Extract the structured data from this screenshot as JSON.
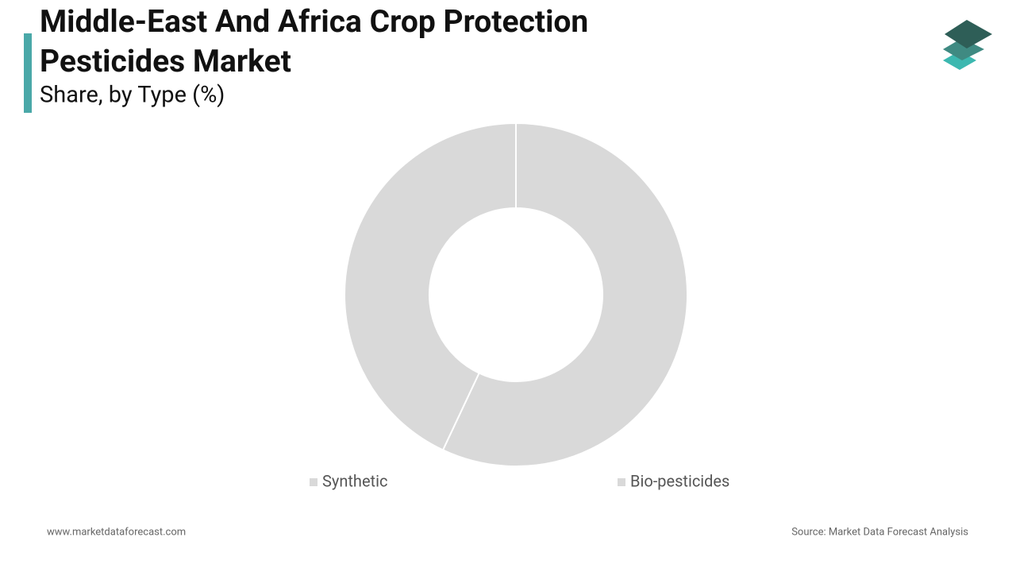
{
  "chart_data": {
    "type": "donut",
    "title": "Middle-East And Africa Crop Protection Pesticides Market",
    "subtitle": "Share, by Type (%)",
    "categories": [
      "Synthetic",
      "Bio-pesticides"
    ],
    "values": [
      57,
      43
    ],
    "colors": [
      "#d9d9d9",
      "#d9d9d9"
    ]
  },
  "footer": {
    "website": "www.marketdataforecast.com",
    "source": "Source: Market Data Forecast Analysis"
  }
}
